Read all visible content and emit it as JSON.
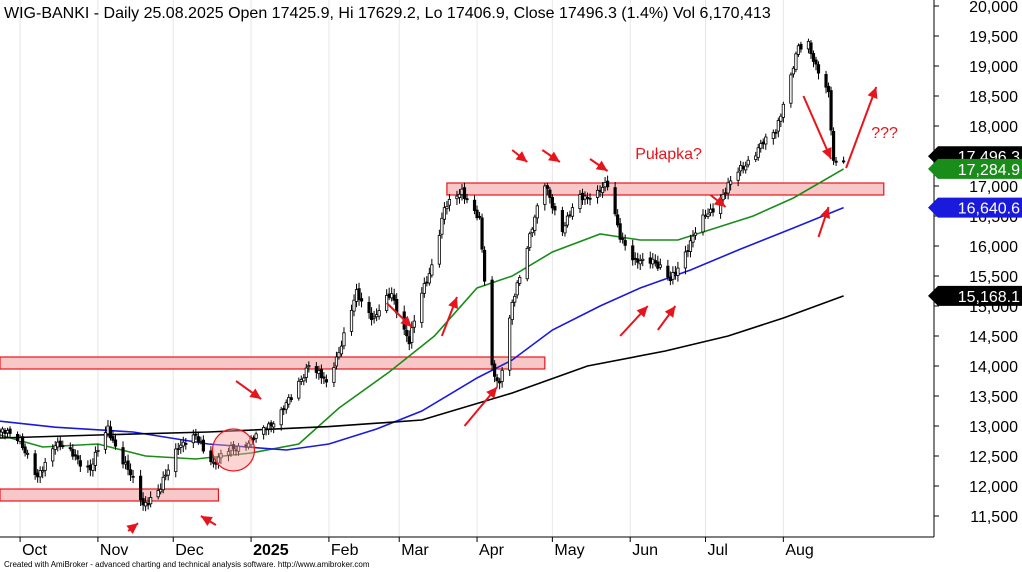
{
  "chart_data": {
    "type": "candlestick",
    "title": "WIG-BANKI - Daily 25.08.2025 Open 17425.9, Hi 17629.2, Lo 17406.9, Close 17496.3 (1.4%) Vol 6,170,413",
    "ylim": [
      11150,
      20100
    ],
    "yticks": [
      11500,
      12000,
      12500,
      13000,
      13500,
      14000,
      14500,
      15000,
      15500,
      16000,
      16500,
      17000,
      17500,
      18000,
      18500,
      19000,
      19500,
      20000
    ],
    "ytick_labels": [
      "11,500",
      "12,000",
      "12,500",
      "13,000",
      "13,500",
      "14,000",
      "14,500",
      "15,000",
      "15,500",
      "16,000",
      "16,500",
      "17,000",
      "17,500",
      "18,000",
      "18,500",
      "19,000",
      "19,500",
      "20,000"
    ],
    "x_dates": [
      "2024-09-23",
      "2025-09-30"
    ],
    "month_ticks": [
      {
        "date": "2024-10-01",
        "label": "Oct",
        "bold": false
      },
      {
        "date": "2024-11-01",
        "label": "Nov",
        "bold": false
      },
      {
        "date": "2024-12-01",
        "label": "Dec",
        "bold": false
      },
      {
        "date": "2025-01-01",
        "label": "2025",
        "bold": true
      },
      {
        "date": "2025-02-01",
        "label": "Feb",
        "bold": false
      },
      {
        "date": "2025-03-01",
        "label": "Mar",
        "bold": false
      },
      {
        "date": "2025-04-01",
        "label": "Apr",
        "bold": false
      },
      {
        "date": "2025-05-01",
        "label": "May",
        "bold": false
      },
      {
        "date": "2025-06-01",
        "label": "Jun",
        "bold": false
      },
      {
        "date": "2025-07-01",
        "label": "Jul",
        "bold": false
      },
      {
        "date": "2025-08-01",
        "label": "Aug",
        "bold": false
      }
    ],
    "price_path": [
      [
        "2024-09-23",
        12900
      ],
      [
        "2024-10-01",
        12800
      ],
      [
        "2024-10-08",
        12100
      ],
      [
        "2024-10-15",
        12750
      ],
      [
        "2024-10-22",
        12500
      ],
      [
        "2024-10-29",
        12300
      ],
      [
        "2024-11-05",
        12950
      ],
      [
        "2024-11-12",
        12350
      ],
      [
        "2024-11-19",
        11700
      ],
      [
        "2024-11-26",
        11950
      ],
      [
        "2024-12-03",
        12700
      ],
      [
        "2024-12-10",
        12800
      ],
      [
        "2024-12-17",
        12400
      ],
      [
        "2024-12-24",
        12600
      ],
      [
        "2025-01-03",
        12800
      ],
      [
        "2025-01-10",
        13100
      ],
      [
        "2025-01-17",
        13450
      ],
      [
        "2025-01-24",
        14050
      ],
      [
        "2025-01-31",
        13700
      ],
      [
        "2025-02-07",
        14500
      ],
      [
        "2025-02-12",
        15200
      ],
      [
        "2025-02-19",
        14800
      ],
      [
        "2025-02-26",
        15200
      ],
      [
        "2025-03-05",
        14400
      ],
      [
        "2025-03-10",
        15200
      ],
      [
        "2025-03-14",
        15700
      ],
      [
        "2025-03-19",
        16600
      ],
      [
        "2025-03-26",
        16950
      ],
      [
        "2025-04-02",
        16400
      ],
      [
        "2025-04-07",
        14000
      ],
      [
        "2025-04-10",
        13700
      ],
      [
        "2025-04-15",
        15000
      ],
      [
        "2025-04-22",
        16200
      ],
      [
        "2025-04-28",
        17000
      ],
      [
        "2025-05-05",
        16300
      ],
      [
        "2025-05-12",
        16800
      ],
      [
        "2025-05-19",
        16900
      ],
      [
        "2025-05-23",
        17000
      ],
      [
        "2025-05-28",
        16200
      ],
      [
        "2025-06-03",
        15700
      ],
      [
        "2025-06-10",
        15800
      ],
      [
        "2025-06-17",
        15400
      ],
      [
        "2025-06-24",
        16000
      ],
      [
        "2025-07-01",
        16500
      ],
      [
        "2025-07-08",
        16850
      ],
      [
        "2025-07-15",
        17300
      ],
      [
        "2025-07-22",
        17600
      ],
      [
        "2025-07-29",
        17950
      ],
      [
        "2025-08-04",
        18800
      ],
      [
        "2025-08-07",
        19300
      ],
      [
        "2025-08-11",
        19400
      ],
      [
        "2025-08-14",
        19000
      ],
      [
        "2025-08-19",
        18500
      ],
      [
        "2025-08-21",
        17400
      ],
      [
        "2025-08-25",
        17496
      ]
    ],
    "series": [
      {
        "name": "",
        "color": "#1a8c1a",
        "points": [
          [
            "2024-09-23",
            12850
          ],
          [
            "2024-10-10",
            12650
          ],
          [
            "2024-11-01",
            12700
          ],
          [
            "2024-11-20",
            12500
          ],
          [
            "2024-12-10",
            12450
          ],
          [
            "2025-01-01",
            12550
          ],
          [
            "2025-01-20",
            12700
          ],
          [
            "2025-02-05",
            13300
          ],
          [
            "2025-02-25",
            13900
          ],
          [
            "2025-03-15",
            14500
          ],
          [
            "2025-04-01",
            15300
          ],
          [
            "2025-04-15",
            15500
          ],
          [
            "2025-05-01",
            15900
          ],
          [
            "2025-05-20",
            16200
          ],
          [
            "2025-06-05",
            16100
          ],
          [
            "2025-06-20",
            16100
          ],
          [
            "2025-07-05",
            16300
          ],
          [
            "2025-07-20",
            16500
          ],
          [
            "2025-08-05",
            16800
          ],
          [
            "2025-08-25",
            17285
          ]
        ]
      },
      {
        "name": "",
        "color": "#1a1adc",
        "points": [
          [
            "2024-09-23",
            13080
          ],
          [
            "2024-10-15",
            12980
          ],
          [
            "2024-11-15",
            12900
          ],
          [
            "2024-12-15",
            12700
          ],
          [
            "2025-01-15",
            12600
          ],
          [
            "2025-02-01",
            12700
          ],
          [
            "2025-02-20",
            12950
          ],
          [
            "2025-03-10",
            13250
          ],
          [
            "2025-04-01",
            13800
          ],
          [
            "2025-04-15",
            14100
          ],
          [
            "2025-05-01",
            14600
          ],
          [
            "2025-05-20",
            15000
          ],
          [
            "2025-06-05",
            15300
          ],
          [
            "2025-06-25",
            15600
          ],
          [
            "2025-07-15",
            15950
          ],
          [
            "2025-08-05",
            16300
          ],
          [
            "2025-08-25",
            16640
          ]
        ]
      },
      {
        "name": "",
        "color": "#000000",
        "points": [
          [
            "2024-09-23",
            12800
          ],
          [
            "2024-11-01",
            12850
          ],
          [
            "2024-12-15",
            12900
          ],
          [
            "2025-02-01",
            12990
          ],
          [
            "2025-03-10",
            13100
          ],
          [
            "2025-04-15",
            13550
          ],
          [
            "2025-05-15",
            14000
          ],
          [
            "2025-06-15",
            14250
          ],
          [
            "2025-07-10",
            14500
          ],
          [
            "2025-08-01",
            14800
          ],
          [
            "2025-08-25",
            15168
          ]
        ]
      }
    ],
    "value_badges": [
      {
        "value": 17496.3,
        "label": "17,496.3",
        "bg": "#000000",
        "fg": "#ffffff"
      },
      {
        "value": 17284.9,
        "label": "17,284.9",
        "bg": "#1a8c1a",
        "fg": "#ffffff"
      },
      {
        "value": 16640.6,
        "label": "16,640.6",
        "bg": "#1a1adc",
        "fg": "#ffffff"
      },
      {
        "value": 15168.1,
        "label": "15,168.1",
        "bg": "#000000",
        "fg": "#ffffff"
      }
    ],
    "zones": [
      {
        "from": "2024-09-23",
        "to": "2024-12-19",
        "low": 11750,
        "high": 11950
      },
      {
        "from": "2024-09-23",
        "to": "2025-04-28",
        "low": 13950,
        "high": 14150
      },
      {
        "from": "2025-03-20",
        "to": "2025-09-10",
        "low": 16850,
        "high": 17050
      }
    ],
    "annotations": [
      {
        "text": "Pułapka?",
        "date": "2025-06-03",
        "value": 17450
      },
      {
        "text": "???",
        "date": "2025-09-05",
        "value": 17800
      }
    ],
    "colors": {
      "zone_fill": "#f8c8c8",
      "zone_stroke": "#e8141c",
      "arrow": "#e8141c"
    }
  },
  "footer": "Created with AmiBroker - advanced charting and technical analysis software. http://www.amibroker.com"
}
